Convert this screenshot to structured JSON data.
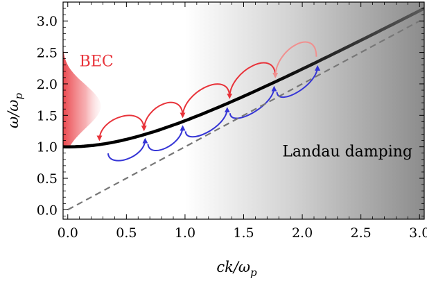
{
  "chart_data": {
    "type": "line",
    "title": "",
    "xlabel": "ck/ω_p",
    "ylabel": "ω/ω_p",
    "xlim": [
      -0.04,
      3.04
    ],
    "ylim": [
      -0.15,
      3.3
    ],
    "x_ticks": [
      "0.0",
      "0.5",
      "1.0",
      "1.5",
      "2.0",
      "2.5",
      "3.0"
    ],
    "x_tick_values": [
      0.0,
      0.5,
      1.0,
      1.5,
      2.0,
      2.5,
      3.0
    ],
    "y_ticks": [
      "0.0",
      "0.5",
      "1.0",
      "1.5",
      "2.0",
      "2.5",
      "3.0"
    ],
    "y_tick_values": [
      0.0,
      0.5,
      1.0,
      1.5,
      2.0,
      2.5,
      3.0
    ],
    "grid": false,
    "series": [
      {
        "style": "solid",
        "color": "#000000",
        "relation": "omega = sqrt(1 + k^2)",
        "x": [
          0.0,
          0.25,
          0.5,
          0.75,
          1.0,
          1.25,
          1.5,
          1.75,
          2.0,
          2.25,
          2.5,
          2.75,
          3.0
        ],
        "y": [
          1.0,
          1.031,
          1.118,
          1.25,
          1.414,
          1.601,
          1.803,
          2.016,
          2.236,
          2.462,
          2.693,
          2.926,
          3.162
        ]
      },
      {
        "style": "dashed",
        "color": "#777777",
        "relation": "omega = k",
        "x": [
          0.0,
          3.0
        ],
        "y": [
          0.0,
          3.0
        ]
      }
    ],
    "shaded_region": {
      "x_start": 1.0,
      "x_end": 3.04,
      "gradient": "white-to-gray"
    },
    "bec_blob": {
      "color": "#e8333a",
      "peak_y": 2.6,
      "x_extent": 0.3
    },
    "transitions": {
      "red": {
        "color": "#e8333a",
        "arcs": [
          [
            0.27,
            0.65
          ],
          [
            0.65,
            0.98
          ],
          [
            0.98,
            1.38
          ],
          [
            1.38,
            1.77
          ],
          [
            1.77,
            2.12
          ]
        ]
      },
      "blue": {
        "color": "#3535d6",
        "arcs": [
          [
            0.32,
            0.66
          ],
          [
            0.66,
            0.98
          ],
          [
            0.98,
            1.36
          ],
          [
            1.36,
            1.76
          ],
          [
            1.76,
            2.13
          ]
        ]
      }
    },
    "annotations": {
      "bec": "BEC",
      "landau": "Landau damping"
    }
  }
}
